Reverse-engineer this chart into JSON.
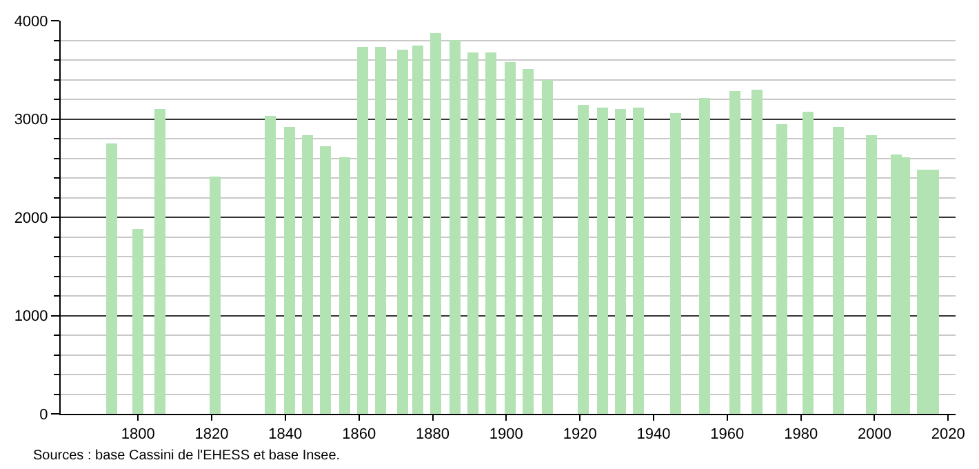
{
  "chart_data": {
    "type": "bar",
    "x": [
      1793,
      1800,
      1806,
      1821,
      1836,
      1841,
      1846,
      1851,
      1856,
      1861,
      1866,
      1872,
      1876,
      1881,
      1886,
      1891,
      1896,
      1901,
      1906,
      1911,
      1921,
      1926,
      1931,
      1936,
      1946,
      1954,
      1962,
      1968,
      1975,
      1982,
      1990,
      1999,
      2006,
      2008,
      2013,
      2016
    ],
    "values": [
      2750,
      1880,
      3100,
      2420,
      3030,
      2920,
      2830,
      2720,
      2610,
      3730,
      3730,
      3710,
      3750,
      3870,
      3800,
      3680,
      3680,
      3580,
      3510,
      3400,
      3140,
      3110,
      3100,
      3120,
      3060,
      3210,
      3280,
      3300,
      2950,
      3080,
      2920,
      2830,
      2640,
      2610,
      2490,
      2480
    ],
    "color": "#b3e3b3",
    "xlim": [
      1779,
      2022
    ],
    "xticks": [
      1800,
      1820,
      1840,
      1860,
      1880,
      1900,
      1920,
      1940,
      1960,
      1980,
      2000,
      2020
    ],
    "ylim": [
      0,
      4000
    ],
    "yticks": [
      0,
      1000,
      2000,
      3000,
      4000
    ],
    "grid": "y",
    "annotations": [
      "Sources : base Cassini de l'EHESS et base Insee."
    ]
  }
}
